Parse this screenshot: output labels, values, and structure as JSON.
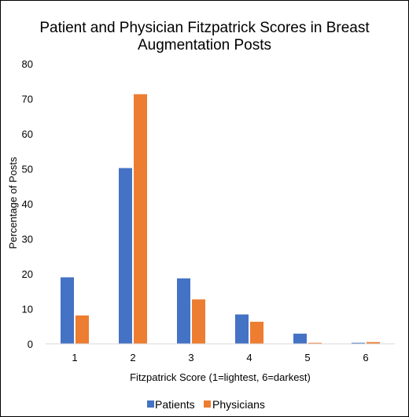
{
  "chart_data": {
    "type": "bar",
    "title": "Patient and Physician Fitzpatrick Scores in Breast Augmentation Posts",
    "title_lines": [
      "Patient and Physician Fitzpatrick Scores in Breast",
      "Augmentation Posts"
    ],
    "xlabel": "Fitzpatrick Score (1=lightest, 6=darkest)",
    "ylabel": "Percentage of Posts",
    "categories": [
      "1",
      "2",
      "3",
      "4",
      "5",
      "6"
    ],
    "ylim": [
      0,
      80
    ],
    "yticks": [
      0,
      10,
      20,
      30,
      40,
      50,
      60,
      70,
      80
    ],
    "grid": false,
    "legend_position": "bottom",
    "series": [
      {
        "name": "Patients",
        "color": "#4472C4",
        "values": [
          19.0,
          50.2,
          18.7,
          8.4,
          2.9,
          0.3
        ]
      },
      {
        "name": "Physicians",
        "color": "#ED7D31",
        "values": [
          8.1,
          71.3,
          12.7,
          6.3,
          0.3,
          0.5
        ]
      }
    ]
  }
}
